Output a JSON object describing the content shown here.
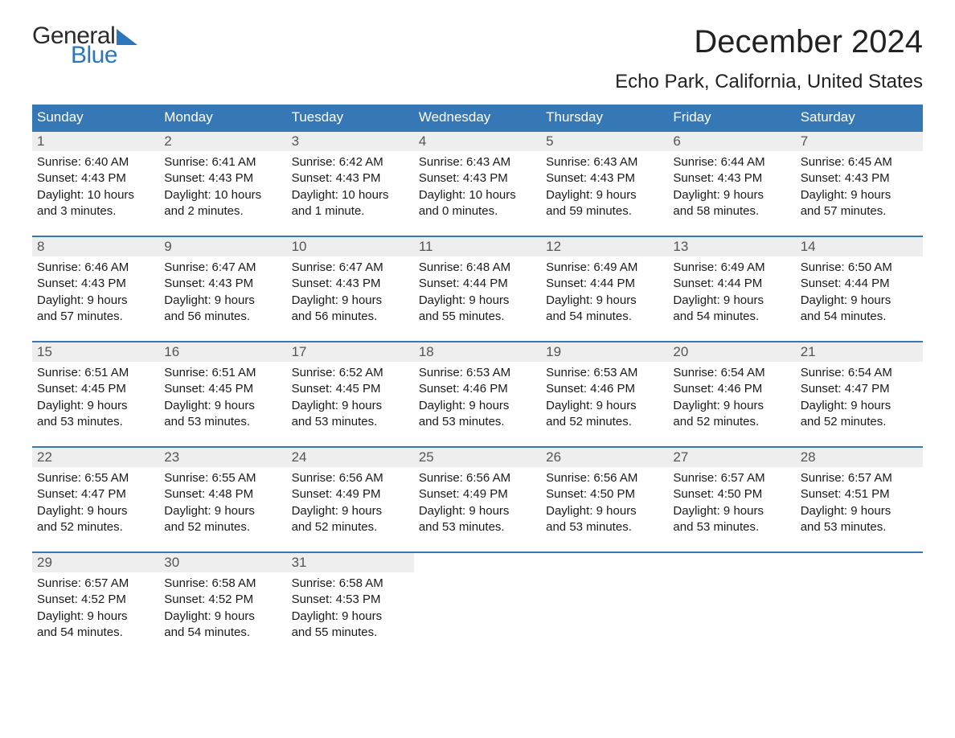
{
  "logo": {
    "text_general": "General",
    "text_blue": "Blue"
  },
  "title": "December 2024",
  "subtitle": "Echo Park, California, United States",
  "colors": {
    "header_bg": "#3678b6",
    "header_text": "#ffffff",
    "daynum_bg": "#eeeeee",
    "daynum_text": "#555555",
    "body_text": "#1a1a1a",
    "week_border": "#3678b6",
    "page_bg": "#ffffff",
    "logo_blue": "#2a77bb"
  },
  "day_names": [
    "Sunday",
    "Monday",
    "Tuesday",
    "Wednesday",
    "Thursday",
    "Friday",
    "Saturday"
  ],
  "weeks": [
    [
      {
        "n": "1",
        "sr": "Sunrise: 6:40 AM",
        "ss": "Sunset: 4:43 PM",
        "d1": "Daylight: 10 hours",
        "d2": "and 3 minutes."
      },
      {
        "n": "2",
        "sr": "Sunrise: 6:41 AM",
        "ss": "Sunset: 4:43 PM",
        "d1": "Daylight: 10 hours",
        "d2": "and 2 minutes."
      },
      {
        "n": "3",
        "sr": "Sunrise: 6:42 AM",
        "ss": "Sunset: 4:43 PM",
        "d1": "Daylight: 10 hours",
        "d2": "and 1 minute."
      },
      {
        "n": "4",
        "sr": "Sunrise: 6:43 AM",
        "ss": "Sunset: 4:43 PM",
        "d1": "Daylight: 10 hours",
        "d2": "and 0 minutes."
      },
      {
        "n": "5",
        "sr": "Sunrise: 6:43 AM",
        "ss": "Sunset: 4:43 PM",
        "d1": "Daylight: 9 hours",
        "d2": "and 59 minutes."
      },
      {
        "n": "6",
        "sr": "Sunrise: 6:44 AM",
        "ss": "Sunset: 4:43 PM",
        "d1": "Daylight: 9 hours",
        "d2": "and 58 minutes."
      },
      {
        "n": "7",
        "sr": "Sunrise: 6:45 AM",
        "ss": "Sunset: 4:43 PM",
        "d1": "Daylight: 9 hours",
        "d2": "and 57 minutes."
      }
    ],
    [
      {
        "n": "8",
        "sr": "Sunrise: 6:46 AM",
        "ss": "Sunset: 4:43 PM",
        "d1": "Daylight: 9 hours",
        "d2": "and 57 minutes."
      },
      {
        "n": "9",
        "sr": "Sunrise: 6:47 AM",
        "ss": "Sunset: 4:43 PM",
        "d1": "Daylight: 9 hours",
        "d2": "and 56 minutes."
      },
      {
        "n": "10",
        "sr": "Sunrise: 6:47 AM",
        "ss": "Sunset: 4:43 PM",
        "d1": "Daylight: 9 hours",
        "d2": "and 56 minutes."
      },
      {
        "n": "11",
        "sr": "Sunrise: 6:48 AM",
        "ss": "Sunset: 4:44 PM",
        "d1": "Daylight: 9 hours",
        "d2": "and 55 minutes."
      },
      {
        "n": "12",
        "sr": "Sunrise: 6:49 AM",
        "ss": "Sunset: 4:44 PM",
        "d1": "Daylight: 9 hours",
        "d2": "and 54 minutes."
      },
      {
        "n": "13",
        "sr": "Sunrise: 6:49 AM",
        "ss": "Sunset: 4:44 PM",
        "d1": "Daylight: 9 hours",
        "d2": "and 54 minutes."
      },
      {
        "n": "14",
        "sr": "Sunrise: 6:50 AM",
        "ss": "Sunset: 4:44 PM",
        "d1": "Daylight: 9 hours",
        "d2": "and 54 minutes."
      }
    ],
    [
      {
        "n": "15",
        "sr": "Sunrise: 6:51 AM",
        "ss": "Sunset: 4:45 PM",
        "d1": "Daylight: 9 hours",
        "d2": "and 53 minutes."
      },
      {
        "n": "16",
        "sr": "Sunrise: 6:51 AM",
        "ss": "Sunset: 4:45 PM",
        "d1": "Daylight: 9 hours",
        "d2": "and 53 minutes."
      },
      {
        "n": "17",
        "sr": "Sunrise: 6:52 AM",
        "ss": "Sunset: 4:45 PM",
        "d1": "Daylight: 9 hours",
        "d2": "and 53 minutes."
      },
      {
        "n": "18",
        "sr": "Sunrise: 6:53 AM",
        "ss": "Sunset: 4:46 PM",
        "d1": "Daylight: 9 hours",
        "d2": "and 53 minutes."
      },
      {
        "n": "19",
        "sr": "Sunrise: 6:53 AM",
        "ss": "Sunset: 4:46 PM",
        "d1": "Daylight: 9 hours",
        "d2": "and 52 minutes."
      },
      {
        "n": "20",
        "sr": "Sunrise: 6:54 AM",
        "ss": "Sunset: 4:46 PM",
        "d1": "Daylight: 9 hours",
        "d2": "and 52 minutes."
      },
      {
        "n": "21",
        "sr": "Sunrise: 6:54 AM",
        "ss": "Sunset: 4:47 PM",
        "d1": "Daylight: 9 hours",
        "d2": "and 52 minutes."
      }
    ],
    [
      {
        "n": "22",
        "sr": "Sunrise: 6:55 AM",
        "ss": "Sunset: 4:47 PM",
        "d1": "Daylight: 9 hours",
        "d2": "and 52 minutes."
      },
      {
        "n": "23",
        "sr": "Sunrise: 6:55 AM",
        "ss": "Sunset: 4:48 PM",
        "d1": "Daylight: 9 hours",
        "d2": "and 52 minutes."
      },
      {
        "n": "24",
        "sr": "Sunrise: 6:56 AM",
        "ss": "Sunset: 4:49 PM",
        "d1": "Daylight: 9 hours",
        "d2": "and 52 minutes."
      },
      {
        "n": "25",
        "sr": "Sunrise: 6:56 AM",
        "ss": "Sunset: 4:49 PM",
        "d1": "Daylight: 9 hours",
        "d2": "and 53 minutes."
      },
      {
        "n": "26",
        "sr": "Sunrise: 6:56 AM",
        "ss": "Sunset: 4:50 PM",
        "d1": "Daylight: 9 hours",
        "d2": "and 53 minutes."
      },
      {
        "n": "27",
        "sr": "Sunrise: 6:57 AM",
        "ss": "Sunset: 4:50 PM",
        "d1": "Daylight: 9 hours",
        "d2": "and 53 minutes."
      },
      {
        "n": "28",
        "sr": "Sunrise: 6:57 AM",
        "ss": "Sunset: 4:51 PM",
        "d1": "Daylight: 9 hours",
        "d2": "and 53 minutes."
      }
    ],
    [
      {
        "n": "29",
        "sr": "Sunrise: 6:57 AM",
        "ss": "Sunset: 4:52 PM",
        "d1": "Daylight: 9 hours",
        "d2": "and 54 minutes."
      },
      {
        "n": "30",
        "sr": "Sunrise: 6:58 AM",
        "ss": "Sunset: 4:52 PM",
        "d1": "Daylight: 9 hours",
        "d2": "and 54 minutes."
      },
      {
        "n": "31",
        "sr": "Sunrise: 6:58 AM",
        "ss": "Sunset: 4:53 PM",
        "d1": "Daylight: 9 hours",
        "d2": "and 55 minutes."
      },
      null,
      null,
      null,
      null
    ]
  ]
}
